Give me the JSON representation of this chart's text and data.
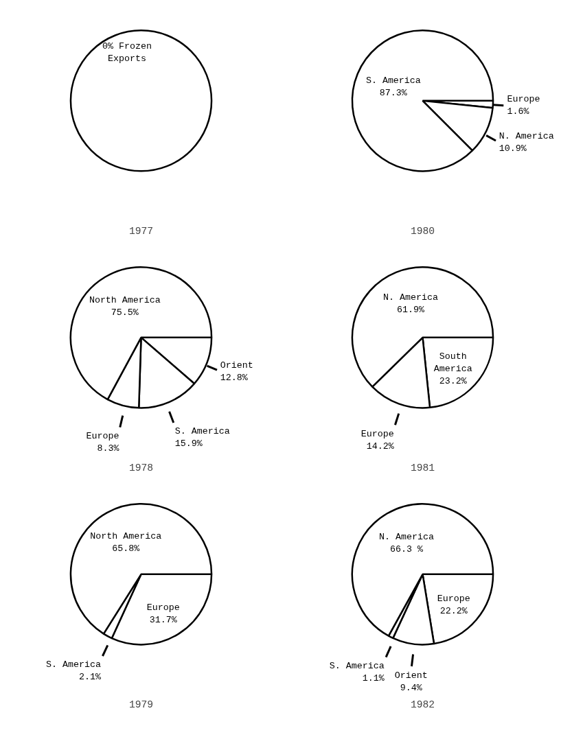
{
  "chart_data": [
    {
      "type": "pie",
      "title": "1977",
      "categories": [
        null
      ],
      "values": [
        100
      ],
      "colors": [
        "#ffffff"
      ],
      "annotations": [
        "0% Frozen\nExports"
      ]
    },
    {
      "type": "pie",
      "title": "1980",
      "categories": [
        "Europe",
        "N. America",
        "S. America"
      ],
      "values": [
        1.6,
        10.9,
        87.3
      ],
      "colors": [
        "#ffffff",
        "#ffffff",
        "#ffffff"
      ],
      "value_labels": [
        "1.6%",
        "10.9%",
        "87.3%"
      ]
    },
    {
      "type": "pie",
      "title": "1978",
      "categories": [
        "Orient",
        "S. America",
        "Europe",
        "North America"
      ],
      "values": [
        12.8,
        15.9,
        8.3,
        75.5
      ],
      "colors": [
        "#ffffff",
        "#ffffff",
        "#ffffff",
        "#ffffff"
      ],
      "value_labels": [
        "12.8%",
        "15.9%",
        "8.3%",
        "75.5%"
      ]
    },
    {
      "type": "pie",
      "title": "1981",
      "categories": [
        "South America",
        "Europe",
        "N. America"
      ],
      "values": [
        23.2,
        14.2,
        61.9
      ],
      "colors": [
        "#ffffff",
        "#ffffff",
        "#ffffff"
      ],
      "value_labels": [
        "23.2%",
        "14.2%",
        "61.9%"
      ]
    },
    {
      "type": "pie",
      "title": "1979",
      "categories": [
        "Europe",
        "S. America",
        "North America"
      ],
      "values": [
        31.7,
        2.1,
        65.8
      ],
      "colors": [
        "#ffffff",
        "#ffffff",
        "#ffffff"
      ],
      "value_labels": [
        "31.7%",
        "2.1%",
        "65.8%"
      ]
    },
    {
      "type": "pie",
      "title": "1982",
      "categories": [
        "Europe",
        "Orient",
        "S. America",
        "N. America"
      ],
      "values": [
        22.2,
        9.4,
        1.1,
        66.3
      ],
      "colors": [
        "#ffffff",
        "#ffffff",
        "#ffffff",
        "#ffffff"
      ],
      "value_labels": [
        "22.2%",
        "9.4%",
        "1.1%",
        "66.3 %"
      ]
    }
  ]
}
